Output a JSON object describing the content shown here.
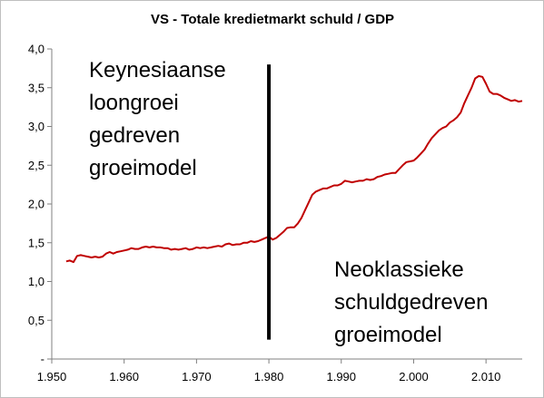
{
  "chart_data": {
    "type": "line",
    "title": "VS - Totale kredietmarkt schuld / GDP",
    "xlabel": "",
    "ylabel": "",
    "xlim": [
      1950,
      2015
    ],
    "ylim": [
      0,
      4.0
    ],
    "grid": false,
    "legend": "none",
    "x_ticks": [
      "1.950",
      "1.960",
      "1.970",
      "1.980",
      "1.990",
      "2.000",
      "2.010"
    ],
    "x_tick_values": [
      1950,
      1960,
      1970,
      1980,
      1990,
      2000,
      2010
    ],
    "y_ticks": [
      "-",
      "0,5",
      "1,0",
      "1,5",
      "2,0",
      "2,5",
      "3,0",
      "3,5",
      "4,0"
    ],
    "y_tick_values": [
      0,
      0.5,
      1.0,
      1.5,
      2.0,
      2.5,
      3.0,
      3.5,
      4.0
    ],
    "series": [
      {
        "color": "#c00000",
        "points": [
          [
            1952,
            1.26
          ],
          [
            1952.5,
            1.27
          ],
          [
            1953,
            1.25
          ],
          [
            1953.5,
            1.33
          ],
          [
            1954,
            1.34
          ],
          [
            1954.5,
            1.33
          ],
          [
            1955,
            1.32
          ],
          [
            1955.5,
            1.31
          ],
          [
            1956,
            1.32
          ],
          [
            1956.5,
            1.31
          ],
          [
            1957,
            1.32
          ],
          [
            1957.5,
            1.36
          ],
          [
            1958,
            1.38
          ],
          [
            1958.5,
            1.36
          ],
          [
            1959,
            1.38
          ],
          [
            1959.5,
            1.39
          ],
          [
            1960,
            1.4
          ],
          [
            1960.5,
            1.41
          ],
          [
            1961,
            1.43
          ],
          [
            1961.5,
            1.42
          ],
          [
            1962,
            1.42
          ],
          [
            1962.5,
            1.44
          ],
          [
            1963,
            1.45
          ],
          [
            1963.5,
            1.44
          ],
          [
            1964,
            1.45
          ],
          [
            1964.5,
            1.44
          ],
          [
            1965,
            1.44
          ],
          [
            1965.5,
            1.43
          ],
          [
            1966,
            1.43
          ],
          [
            1966.5,
            1.41
          ],
          [
            1967,
            1.42
          ],
          [
            1967.5,
            1.41
          ],
          [
            1968,
            1.42
          ],
          [
            1968.5,
            1.43
          ],
          [
            1969,
            1.41
          ],
          [
            1969.5,
            1.42
          ],
          [
            1970,
            1.44
          ],
          [
            1970.5,
            1.43
          ],
          [
            1971,
            1.44
          ],
          [
            1971.5,
            1.43
          ],
          [
            1972,
            1.44
          ],
          [
            1972.5,
            1.45
          ],
          [
            1973,
            1.46
          ],
          [
            1973.5,
            1.45
          ],
          [
            1974,
            1.48
          ],
          [
            1974.5,
            1.49
          ],
          [
            1975,
            1.47
          ],
          [
            1975.5,
            1.48
          ],
          [
            1976,
            1.48
          ],
          [
            1976.5,
            1.5
          ],
          [
            1977,
            1.5
          ],
          [
            1977.5,
            1.52
          ],
          [
            1978,
            1.51
          ],
          [
            1978.5,
            1.52
          ],
          [
            1979,
            1.54
          ],
          [
            1979.5,
            1.56
          ],
          [
            1980,
            1.58
          ],
          [
            1980.5,
            1.54
          ],
          [
            1981,
            1.56
          ],
          [
            1981.5,
            1.6
          ],
          [
            1982,
            1.64
          ],
          [
            1982.5,
            1.69
          ],
          [
            1983,
            1.7
          ],
          [
            1983.5,
            1.7
          ],
          [
            1984,
            1.75
          ],
          [
            1984.5,
            1.82
          ],
          [
            1985,
            1.92
          ],
          [
            1985.5,
            2.02
          ],
          [
            1986,
            2.12
          ],
          [
            1986.5,
            2.16
          ],
          [
            1987,
            2.18
          ],
          [
            1987.5,
            2.2
          ],
          [
            1988,
            2.2
          ],
          [
            1988.5,
            2.22
          ],
          [
            1989,
            2.24
          ],
          [
            1989.5,
            2.24
          ],
          [
            1990,
            2.26
          ],
          [
            1990.5,
            2.3
          ],
          [
            1991,
            2.29
          ],
          [
            1991.5,
            2.28
          ],
          [
            1992,
            2.29
          ],
          [
            1992.5,
            2.3
          ],
          [
            1993,
            2.3
          ],
          [
            1993.5,
            2.32
          ],
          [
            1994,
            2.31
          ],
          [
            1994.5,
            2.32
          ],
          [
            1995,
            2.35
          ],
          [
            1995.5,
            2.36
          ],
          [
            1996,
            2.38
          ],
          [
            1996.5,
            2.39
          ],
          [
            1997,
            2.4
          ],
          [
            1997.5,
            2.4
          ],
          [
            1998,
            2.45
          ],
          [
            1998.5,
            2.5
          ],
          [
            1999,
            2.54
          ],
          [
            1999.5,
            2.55
          ],
          [
            2000,
            2.56
          ],
          [
            2000.5,
            2.6
          ],
          [
            2001,
            2.65
          ],
          [
            2001.5,
            2.7
          ],
          [
            2002,
            2.78
          ],
          [
            2002.5,
            2.85
          ],
          [
            2003,
            2.9
          ],
          [
            2003.5,
            2.95
          ],
          [
            2004,
            2.98
          ],
          [
            2004.5,
            3.0
          ],
          [
            2005,
            3.05
          ],
          [
            2005.5,
            3.08
          ],
          [
            2006,
            3.12
          ],
          [
            2006.5,
            3.18
          ],
          [
            2007,
            3.3
          ],
          [
            2007.5,
            3.4
          ],
          [
            2008,
            3.5
          ],
          [
            2008.5,
            3.62
          ],
          [
            2009,
            3.65
          ],
          [
            2009.5,
            3.64
          ],
          [
            2010,
            3.55
          ],
          [
            2010.5,
            3.45
          ],
          [
            2011,
            3.42
          ],
          [
            2011.5,
            3.42
          ],
          [
            2012,
            3.4
          ],
          [
            2012.5,
            3.37
          ],
          [
            2013,
            3.35
          ],
          [
            2013.5,
            3.33
          ],
          [
            2014,
            3.34
          ],
          [
            2014.5,
            3.32
          ],
          [
            2015,
            3.33
          ]
        ]
      }
    ],
    "annotations": {
      "marker_x": 1980,
      "marker_y_range": [
        0.25,
        3.8
      ],
      "left_lines": [
        "Keynesiaanse",
        "loongroei",
        "gedreven",
        "groeimodel"
      ],
      "right_lines": [
        "Neoklassieke",
        "schuldgedreven",
        "groeimodel"
      ]
    }
  }
}
